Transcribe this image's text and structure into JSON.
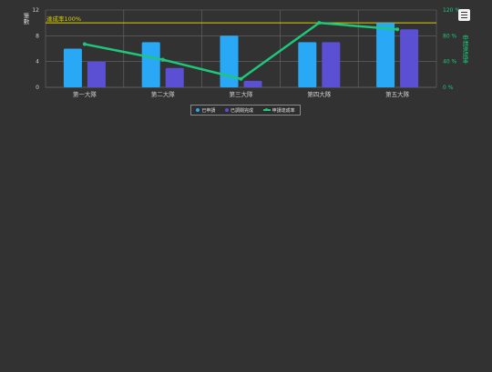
{
  "chart_data": {
    "type": "bar",
    "categories": [
      "第一大隊",
      "第二大隊",
      "第三大隊",
      "第四大隊",
      "第五大隊"
    ],
    "series": [
      {
        "name": "已申請",
        "type": "bar",
        "values": [
          6,
          7,
          8,
          7,
          10
        ],
        "color": "#29a8f5"
      },
      {
        "name": "已調閱完成",
        "type": "bar",
        "values": [
          4,
          3,
          1,
          7,
          9
        ],
        "color": "#5b4fd4"
      },
      {
        "name": "申請達成率",
        "type": "line",
        "axis": "right",
        "values": [
          67,
          43,
          13,
          100,
          90
        ],
        "color": "#1ec77a"
      }
    ],
    "ylabel": "筆數",
    "ylabel_right": "申請達成率",
    "ylim": [
      0,
      12
    ],
    "y_ticks": [
      "0",
      "4",
      "8",
      "12"
    ],
    "y2lim": [
      0,
      120
    ],
    "y2_ticks": [
      "0 %",
      "40 %",
      "80 %",
      "120 %"
    ],
    "target_line": {
      "label": "達成率100%",
      "value_percent": 100,
      "color": "#d9d000"
    },
    "grid": true,
    "legend_position": "bottom"
  },
  "legend": {
    "items": [
      {
        "label": "已申請",
        "color": "#29a8f5",
        "marker": "dot"
      },
      {
        "label": "已調閱完成",
        "color": "#5b4fd4",
        "marker": "dot"
      },
      {
        "label": "申請達成率",
        "color": "#1ec77a",
        "marker": "line"
      }
    ]
  },
  "menu_icon": "hamburger-menu-icon"
}
